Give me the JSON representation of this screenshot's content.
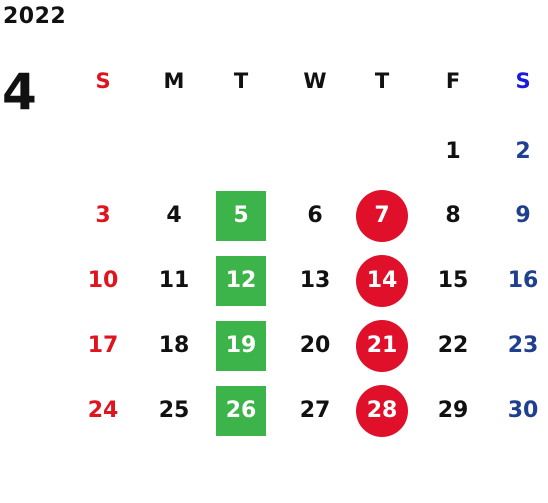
{
  "year": "2022",
  "month": "4",
  "weekdays": [
    "S",
    "M",
    "T",
    "W",
    "T",
    "F",
    "S"
  ],
  "weeks": [
    [
      "",
      "",
      "",
      "",
      "",
      "1",
      "2"
    ],
    [
      "3",
      "4",
      "5",
      "6",
      "7",
      "8",
      "9"
    ],
    [
      "10",
      "11",
      "12",
      "13",
      "14",
      "15",
      "16"
    ],
    [
      "17",
      "18",
      "19",
      "20",
      "21",
      "22",
      "23"
    ],
    [
      "24",
      "25",
      "26",
      "27",
      "28",
      "29",
      "30"
    ]
  ],
  "green_marked_days": [
    "5",
    "12",
    "19",
    "26"
  ],
  "red_marked_days": [
    "7",
    "14",
    "21",
    "28"
  ],
  "colors": {
    "sunday": "#e0141e",
    "saturday_header": "#1a1adc",
    "saturday": "#1f3f8f",
    "weekday": "#111111",
    "green_mark": "#3cb44a",
    "red_mark": "#e0102a",
    "mark_text": "#ffffff"
  }
}
